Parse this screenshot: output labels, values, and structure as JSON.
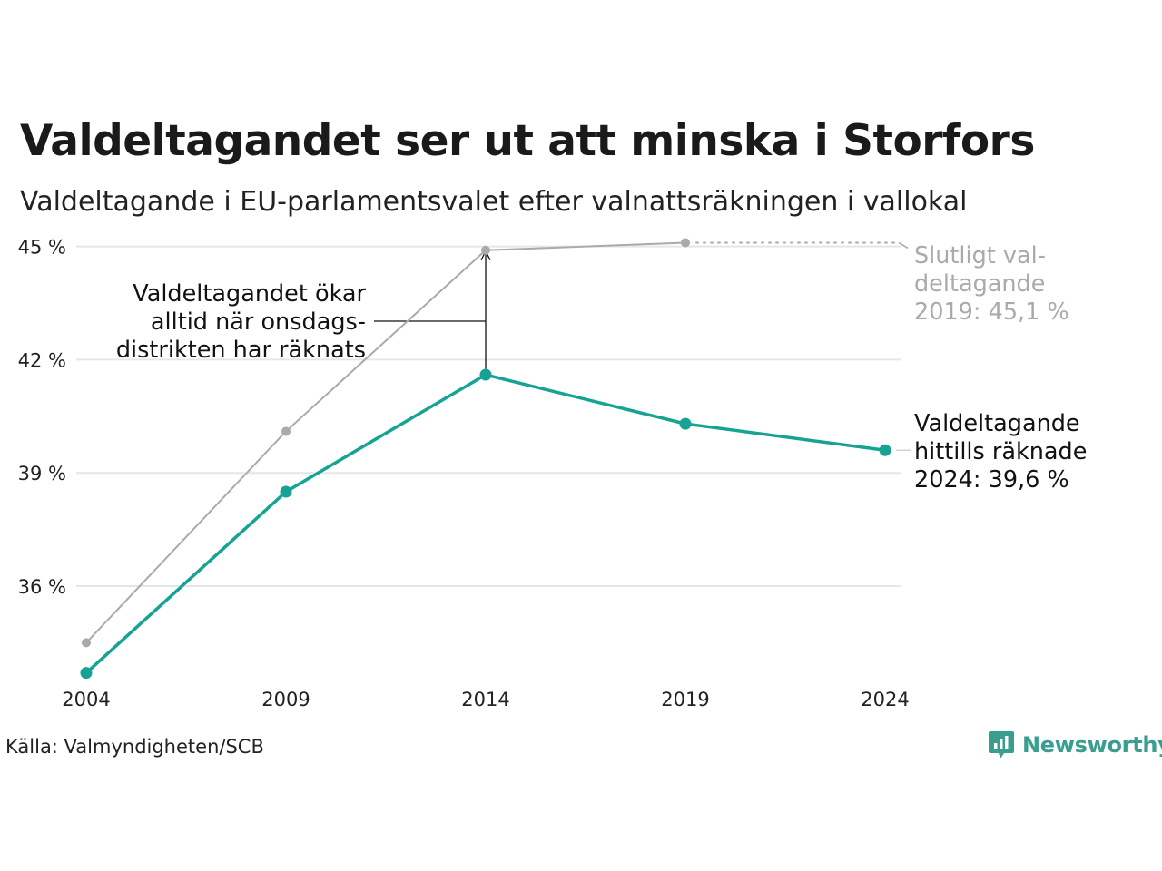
{
  "title": "Valdeltagandet ser ut att minska i Storfors",
  "subtitle": "Valdeltagande i EU-parlamentsvalet efter valnattsräkningen i vallokal",
  "source": "Källa: Valmyndigheten/SCB",
  "brand": {
    "name": "Newsworthy",
    "icon": "newsworthy-bar-chart-icon",
    "color": "#3a9e8f"
  },
  "chart_data": {
    "type": "line",
    "x": [
      2004,
      2009,
      2014,
      2019,
      2024
    ],
    "x_tick_labels": [
      "2004",
      "2009",
      "2014",
      "2019",
      "2024"
    ],
    "y_ticks": [
      36,
      39,
      42,
      45
    ],
    "y_tick_labels": [
      "36 %",
      "39 %",
      "42 %",
      "45 %"
    ],
    "ylim": [
      33.5,
      46
    ],
    "grid": true,
    "series": [
      {
        "key": "final",
        "color": "#aaaaaa",
        "x": [
          2004,
          2009,
          2014,
          2019
        ],
        "values": [
          34.5,
          40.1,
          44.9,
          45.1
        ]
      },
      {
        "key": "election_night",
        "color": "#16a394",
        "x": [
          2004,
          2009,
          2014,
          2019,
          2024
        ],
        "values": [
          33.7,
          38.5,
          41.6,
          40.3,
          39.6
        ]
      }
    ],
    "annotations": [
      {
        "key": "wednesday",
        "lines": [
          "Valdeltagandet ökar",
          "alltid när onsdags-",
          "distrikten har räknats"
        ],
        "color": "#111111"
      },
      {
        "key": "final2019",
        "lines": [
          "Slutligt val-",
          "deltagande",
          "2019: 45,1 %"
        ],
        "color": "#aaaaaa"
      },
      {
        "key": "current2024",
        "lines": [
          "Valdeltagande",
          "hittills räknade",
          "2024: 39,6 %"
        ],
        "color": "#111111"
      }
    ]
  }
}
